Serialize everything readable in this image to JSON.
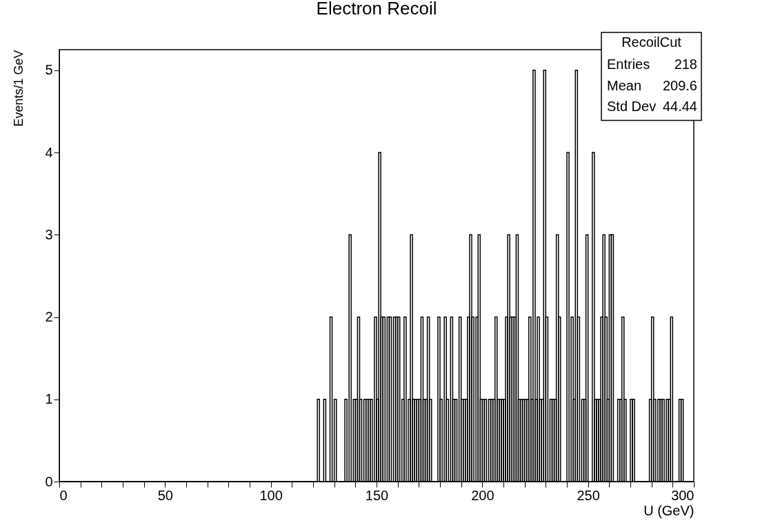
{
  "chart_data": {
    "type": "histogram",
    "title": "Electron Recoil",
    "xlabel": "U (GeV)",
    "ylabel": "Events/1 GeV",
    "bins": [
      0,
      1,
      2,
      3,
      4,
      5,
      6,
      7,
      8,
      9,
      10,
      11,
      12,
      13,
      14,
      15,
      16,
      17,
      18,
      19,
      20,
      21,
      22,
      23,
      24,
      25,
      26,
      27,
      28,
      29,
      30,
      31,
      32,
      33,
      34,
      35,
      36,
      37,
      38,
      39,
      40,
      41,
      42,
      43,
      44,
      45,
      46,
      47,
      48,
      49,
      50,
      51,
      52,
      53,
      54,
      55,
      56,
      57,
      58,
      59,
      60,
      61,
      62,
      63,
      64,
      65,
      66,
      67,
      68,
      69,
      70,
      71,
      72,
      73,
      74,
      75,
      76,
      77,
      78,
      79,
      80,
      81,
      82,
      83,
      84,
      85,
      86,
      87,
      88,
      89,
      90,
      91,
      92,
      93,
      94,
      95,
      96,
      97,
      98,
      99,
      100,
      101,
      102,
      103,
      104,
      105,
      106,
      107,
      108,
      109,
      110,
      111,
      112,
      113,
      114,
      115,
      116,
      117,
      118,
      119,
      120,
      121,
      122,
      123,
      124,
      125,
      126,
      127,
      128,
      129,
      130,
      131,
      132,
      133,
      134,
      135,
      136,
      137,
      138,
      139,
      140,
      141,
      142,
      143,
      144,
      145,
      146,
      147,
      148,
      149,
      150,
      151,
      152,
      153,
      154,
      155,
      156,
      157,
      158,
      159,
      160,
      161,
      162,
      163,
      164,
      165,
      166,
      167,
      168,
      169,
      170,
      171,
      172,
      173,
      174,
      175,
      176,
      177,
      178,
      179,
      180,
      181,
      182,
      183,
      184,
      185,
      186,
      187,
      188,
      189,
      190,
      191,
      192,
      193,
      194,
      195,
      196,
      197,
      198,
      199,
      200,
      201,
      202,
      203,
      204,
      205,
      206,
      207,
      208,
      209,
      210,
      211,
      212,
      213,
      214,
      215,
      216,
      217,
      218,
      219,
      220,
      221,
      222,
      223,
      224,
      225,
      226,
      227,
      228,
      229,
      230,
      231,
      232,
      233,
      234,
      235,
      236,
      237,
      238,
      239,
      240,
      241,
      242,
      243,
      244,
      245,
      246,
      247,
      248,
      249,
      250,
      251,
      252,
      253,
      254,
      255,
      256,
      257,
      258,
      259,
      260,
      261,
      262,
      263,
      264,
      265,
      266,
      267,
      268,
      269,
      270,
      271,
      272,
      273,
      274,
      275,
      276,
      277,
      278,
      279,
      280,
      281,
      282,
      283,
      284,
      285,
      286,
      287,
      288,
      289,
      290,
      291,
      292,
      293,
      294,
      295,
      296,
      297,
      298,
      299,
      300
    ],
    "values": [
      0,
      0,
      0,
      0,
      0,
      0,
      0,
      0,
      0,
      0,
      0,
      0,
      0,
      0,
      0,
      0,
      0,
      0,
      0,
      0,
      0,
      0,
      0,
      0,
      0,
      0,
      0,
      0,
      0,
      0,
      0,
      0,
      0,
      0,
      0,
      0,
      0,
      0,
      0,
      0,
      0,
      0,
      0,
      0,
      0,
      0,
      0,
      0,
      0,
      0,
      0,
      0,
      0,
      0,
      0,
      0,
      0,
      0,
      0,
      0,
      0,
      0,
      0,
      0,
      0,
      0,
      0,
      0,
      0,
      0,
      0,
      0,
      0,
      0,
      0,
      0,
      0,
      0,
      0,
      0,
      0,
      0,
      0,
      0,
      0,
      0,
      0,
      0,
      0,
      0,
      0,
      0,
      0,
      0,
      0,
      0,
      0,
      0,
      0,
      0,
      0,
      0,
      0,
      0,
      0,
      0,
      0,
      0,
      0,
      0,
      0,
      0,
      0,
      0,
      0,
      0,
      0,
      0,
      0,
      0,
      0,
      0,
      1,
      0,
      0,
      1,
      0,
      0,
      2,
      0,
      1,
      0,
      0,
      0,
      0,
      1,
      0,
      3,
      0,
      1,
      1,
      2,
      1,
      0,
      1,
      1,
      1,
      1,
      0,
      2,
      1,
      4,
      2,
      2,
      0,
      2,
      2,
      0,
      2,
      2,
      2,
      0,
      1,
      2,
      0,
      1,
      3,
      1,
      1,
      1,
      1,
      2,
      1,
      1,
      2,
      1,
      0,
      0,
      0,
      2,
      1,
      0,
      2,
      1,
      0,
      2,
      1,
      1,
      0,
      2,
      1,
      1,
      1,
      2,
      3,
      2,
      0,
      2,
      3,
      1,
      1,
      1,
      0,
      1,
      1,
      1,
      2,
      1,
      1,
      1,
      1,
      2,
      3,
      2,
      2,
      2,
      3,
      1,
      1,
      1,
      1,
      1,
      2,
      1,
      5,
      1,
      2,
      1,
      1,
      5,
      2,
      0,
      1,
      1,
      1,
      3,
      2,
      0,
      0,
      0,
      4,
      0,
      2,
      1,
      5,
      2,
      0,
      1,
      1,
      3,
      0,
      0,
      4,
      1,
      1,
      1,
      2,
      3,
      2,
      1,
      3,
      3,
      0,
      0,
      1,
      1,
      2,
      1,
      0,
      0,
      1,
      1,
      0,
      0,
      0,
      0,
      0,
      0,
      0,
      1,
      2,
      1,
      0,
      1,
      1,
      1,
      0,
      1,
      1,
      2,
      0,
      0,
      0,
      1,
      1,
      0,
      0,
      0,
      0,
      0
    ],
    "color": "#000000",
    "xlim": [
      0,
      300
    ],
    "ylim": [
      0,
      5.25
    ],
    "xticks": [
      0,
      {
        "value": 10,
        "label": null
      },
      {
        "value": 20,
        "label": null
      },
      {
        "value": 30,
        "label": null
      },
      {
        "value": 40,
        "label": null
      },
      50,
      {
        "value": 60,
        "label": null
      },
      {
        "value": 70,
        "label": null
      },
      {
        "value": 80,
        "label": null
      },
      {
        "value": 90,
        "label": null
      },
      100,
      {
        "value": 110,
        "label": null
      },
      {
        "value": 120,
        "label": null
      },
      {
        "value": 130,
        "label": null
      },
      {
        "value": 140,
        "label": null
      },
      150,
      {
        "value": 160,
        "label": null
      },
      {
        "value": 170,
        "label": null
      },
      {
        "value": 180,
        "label": null
      },
      {
        "value": 190,
        "label": null
      },
      200,
      {
        "value": 210,
        "label": null
      },
      {
        "value": 220,
        "label": null
      },
      {
        "value": 230,
        "label": null
      },
      {
        "value": 240,
        "label": null
      },
      250,
      {
        "value": 260,
        "label": null
      },
      {
        "value": 270,
        "label": null
      },
      {
        "value": 280,
        "label": null
      },
      {
        "value": 290,
        "label": null
      },
      300
    ],
    "yticks": [
      0,
      1,
      2,
      3,
      4,
      5
    ],
    "annotations": [
      "RecoilCut",
      "Entries",
      "218",
      "Mean",
      "209.6",
      "Std Dev",
      "44.44"
    ]
  }
}
